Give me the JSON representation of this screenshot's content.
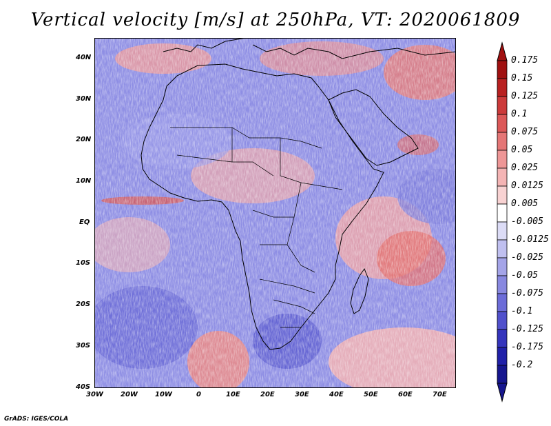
{
  "title": "Vertical velocity [m/s] at 250hPa, VT: 2020061809",
  "credit": "GrADS: IGES/COLA",
  "map": {
    "lat_labels": [
      "40N",
      "30N",
      "20N",
      "10N",
      "EQ",
      "10S",
      "20S",
      "30S",
      "40S"
    ],
    "lon_labels": [
      "30W",
      "20W",
      "10W",
      "0",
      "10E",
      "20E",
      "30E",
      "40E",
      "50E",
      "60E",
      "70E"
    ],
    "lat_range": [
      -40,
      45
    ],
    "lon_range": [
      -30,
      75
    ]
  },
  "colorbar": {
    "labels": [
      "0.175",
      "0.15",
      "0.125",
      "0.1",
      "0.075",
      "0.05",
      "0.025",
      "0.0125",
      "0.005",
      "-0.005",
      "-0.0125",
      "-0.025",
      "-0.05",
      "-0.075",
      "-0.1",
      "-0.125",
      "-0.175",
      "-0.2"
    ],
    "colors": [
      "#a01010",
      "#b82020",
      "#cc3a3a",
      "#dc5858",
      "#e57676",
      "#ee9696",
      "#f4b4b4",
      "#f8d2d2",
      "#ffffff",
      "#dcdcf6",
      "#c0c0f0",
      "#a4a4e8",
      "#8888e0",
      "#6c6cd8",
      "#5050cc",
      "#3434bc",
      "#2020a8",
      "#16168e"
    ]
  },
  "chart_data": {
    "type": "heatmap",
    "title": "Vertical velocity [m/s] at 250hPa, VT: 2020061809",
    "variable": "Vertical velocity",
    "units": "m/s",
    "level": "250hPa",
    "valid_time": "2020061809",
    "x_ticks": [
      "30W",
      "20W",
      "10W",
      "0",
      "10E",
      "20E",
      "30E",
      "40E",
      "50E",
      "60E",
      "70E"
    ],
    "y_ticks": [
      "40N",
      "30N",
      "20N",
      "10N",
      "EQ",
      "10S",
      "20S",
      "30S",
      "40S"
    ],
    "contour_levels": [
      -0.2,
      -0.175,
      -0.125,
      -0.1,
      -0.075,
      -0.05,
      -0.025,
      -0.0125,
      -0.005,
      0.005,
      0.0125,
      0.025,
      0.05,
      0.075,
      0.1,
      0.125,
      0.15,
      0.175
    ]
  }
}
